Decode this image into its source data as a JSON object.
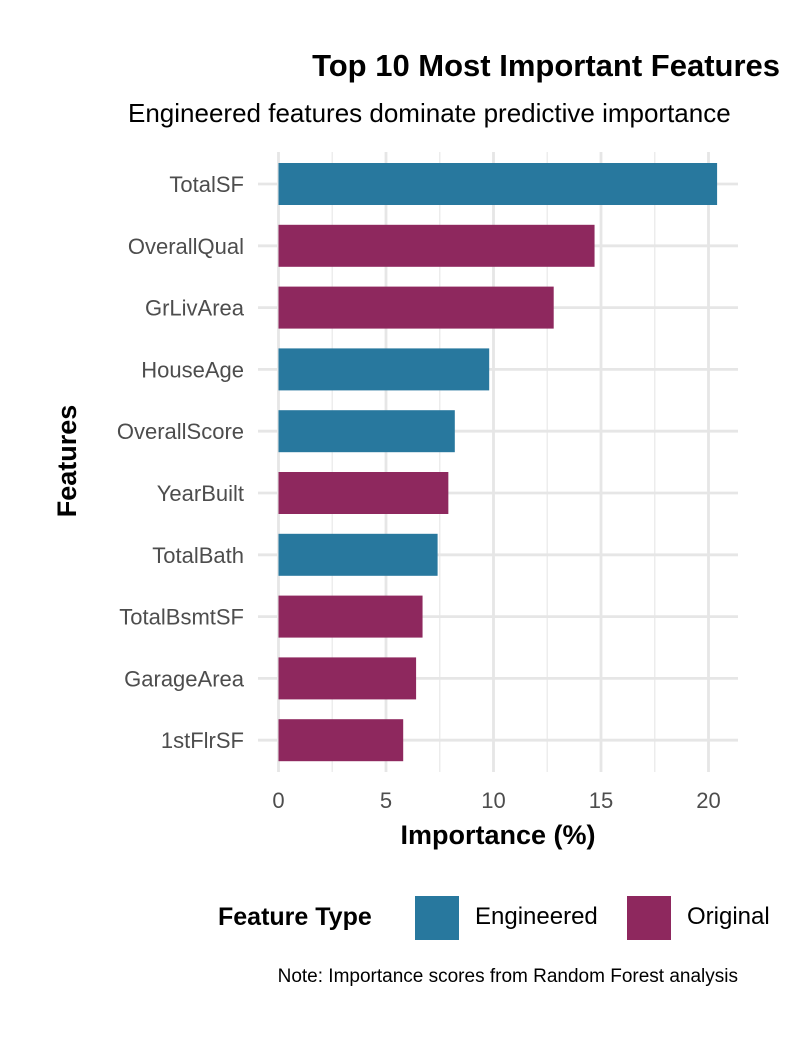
{
  "chart_data": {
    "type": "bar",
    "orientation": "horizontal",
    "title": "Top 10 Most Important Features",
    "subtitle": "Engineered features dominate predictive importance",
    "xlabel": "Importance (%)",
    "ylabel": "Features",
    "xlim": [
      0,
      21.3
    ],
    "xticks": [
      0,
      5,
      10,
      15,
      20
    ],
    "grid": true,
    "caption": "Note: Importance scores from Random Forest analysis",
    "legend": {
      "title": "Feature Type",
      "position": "bottom",
      "entries": [
        {
          "label": "Engineered",
          "color": "#28789e"
        },
        {
          "label": "Original",
          "color": "#8e285e"
        }
      ]
    },
    "categories": [
      "TotalSF",
      "OverallQual",
      "GrLivArea",
      "HouseAge",
      "OverallScore",
      "YearBuilt",
      "TotalBath",
      "TotalBsmtSF",
      "GarageArea",
      "1stFlrSF"
    ],
    "values": [
      20.4,
      14.7,
      12.8,
      9.8,
      8.2,
      7.9,
      7.4,
      6.7,
      6.4,
      5.8
    ],
    "types": [
      "Engineered",
      "Original",
      "Original",
      "Engineered",
      "Engineered",
      "Original",
      "Engineered",
      "Original",
      "Original",
      "Original"
    ]
  }
}
